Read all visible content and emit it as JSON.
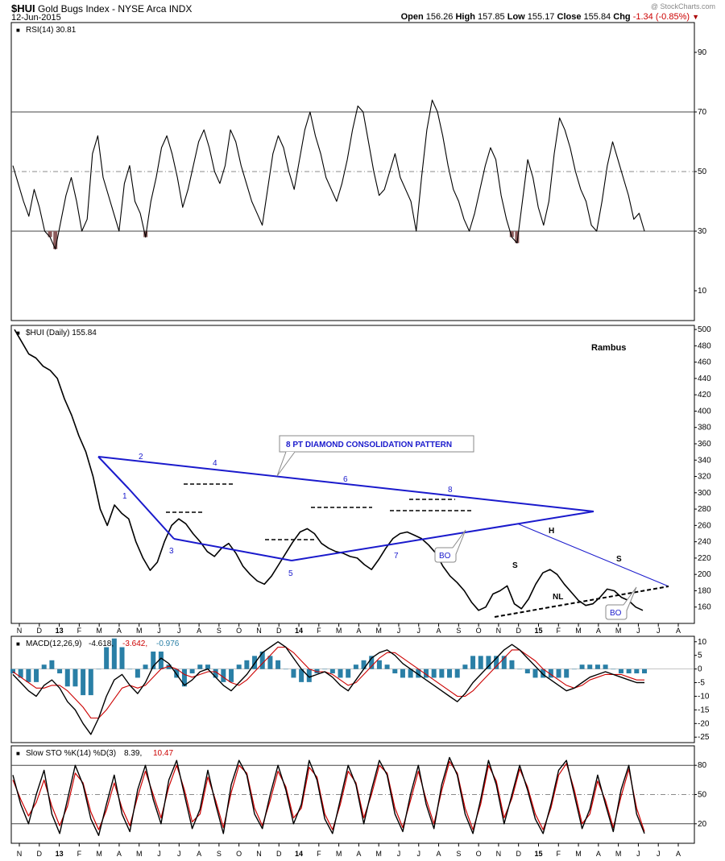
{
  "header": {
    "symbol": "$HUI",
    "name": "Gold Bugs Index - NYSE Arca INDX",
    "date": "12-Jun-2015",
    "watermark": "@ StockCharts.com",
    "open_label": "Open",
    "open": "156.26",
    "high_label": "High",
    "high": "157.85",
    "low_label": "Low",
    "low": "155.17",
    "close_label": "Close",
    "close": "155.84",
    "chg_label": "Chg",
    "chg": "-1.34 (-0.85%)"
  },
  "colors": {
    "pattern_blue": "#1a1acc",
    "macd_red": "#cc0000",
    "histogram": "#2a7fa6",
    "rsi_fill": "#8b5a5a"
  },
  "time_axis": [
    "N",
    "D",
    "13",
    "F",
    "M",
    "A",
    "M",
    "J",
    "J",
    "A",
    "S",
    "O",
    "N",
    "D",
    "14",
    "F",
    "M",
    "A",
    "M",
    "J",
    "J",
    "A",
    "S",
    "O",
    "N",
    "D",
    "15",
    "F",
    "M",
    "A",
    "M",
    "J",
    "J",
    "A"
  ],
  "annotations": {
    "rambus": "Rambus",
    "pattern_box": "8 PT DIAMOND CONSOLIDATION PATTERN",
    "points": [
      "1",
      "2",
      "3",
      "4",
      "5",
      "6",
      "7",
      "8"
    ],
    "h": "H",
    "s": "S",
    "nl": "NL",
    "bo": "BO"
  },
  "chart_data": [
    {
      "type": "line",
      "title": "RSI(14) 30.81",
      "ylim": [
        0,
        100
      ],
      "yticks": [
        10,
        30,
        50,
        70,
        90
      ],
      "levels": [
        30,
        50,
        70
      ],
      "series": [
        {
          "name": "RSI(14)",
          "values": [
            52,
            46,
            40,
            35,
            44,
            38,
            30,
            28,
            24,
            33,
            42,
            48,
            40,
            30,
            34,
            56,
            62,
            48,
            42,
            36,
            30,
            46,
            52,
            40,
            36,
            28,
            40,
            48,
            58,
            62,
            56,
            48,
            38,
            44,
            52,
            60,
            64,
            58,
            50,
            46,
            52,
            64,
            60,
            52,
            46,
            40,
            36,
            32,
            44,
            56,
            62,
            58,
            50,
            44,
            54,
            64,
            70,
            62,
            56,
            48,
            44,
            40,
            46,
            54,
            64,
            72,
            70,
            60,
            50,
            42,
            44,
            50,
            56,
            48,
            44,
            40,
            30,
            48,
            64,
            74,
            70,
            62,
            52,
            44,
            40,
            34,
            30,
            36,
            44,
            52,
            58,
            54,
            42,
            34,
            28,
            26,
            40,
            54,
            48,
            38,
            32,
            40,
            56,
            68,
            64,
            58,
            50,
            44,
            40,
            32,
            30,
            40,
            52,
            60,
            54,
            48,
            42,
            34,
            36,
            30
          ]
        }
      ],
      "value_label": "30.81"
    },
    {
      "type": "line",
      "title": "$HUI (Daily) 155.84",
      "ylim": [
        140,
        505
      ],
      "yticks": [
        160,
        180,
        200,
        220,
        240,
        260,
        280,
        300,
        320,
        340,
        360,
        380,
        400,
        420,
        440,
        460,
        480,
        500
      ],
      "series": [
        {
          "name": "$HUI (Daily)",
          "values": [
            500,
            485,
            470,
            465,
            455,
            450,
            440,
            415,
            395,
            370,
            350,
            320,
            280,
            260,
            285,
            275,
            268,
            240,
            220,
            205,
            215,
            240,
            260,
            268,
            262,
            250,
            240,
            228,
            222,
            232,
            238,
            226,
            210,
            200,
            192,
            188,
            198,
            212,
            226,
            240,
            252,
            256,
            250,
            238,
            232,
            228,
            226,
            222,
            220,
            212,
            206,
            218,
            232,
            244,
            250,
            252,
            248,
            244,
            236,
            226,
            210,
            198,
            190,
            180,
            166,
            156,
            160,
            176,
            180,
            186,
            164,
            158,
            170,
            188,
            202,
            206,
            200,
            188,
            178,
            168,
            162,
            164,
            172,
            182,
            180,
            172,
            168,
            160,
            156
          ]
        }
      ],
      "value_label": "155.84"
    },
    {
      "type": "line",
      "title": "MACD(12,26,9) -4.618, -3.642, -0.976",
      "ylim": [
        -27,
        12
      ],
      "yticks": [
        -25,
        -20,
        -15,
        -10,
        -5,
        0,
        5,
        10
      ],
      "series": [
        {
          "name": "MACD",
          "values": [
            -2,
            -5,
            -8,
            -10,
            -6,
            -4,
            -7,
            -12,
            -15,
            -20,
            -24,
            -18,
            -10,
            -4,
            -2,
            -6,
            -9,
            -5,
            1,
            4,
            2,
            -2,
            -6,
            -4,
            -1,
            0,
            -3,
            -6,
            -8,
            -5,
            -2,
            2,
            6,
            8,
            10,
            8,
            4,
            0,
            -3,
            -2,
            -1,
            -3,
            -6,
            -8,
            -4,
            0,
            4,
            6,
            7,
            5,
            2,
            0,
            -2,
            -4,
            -6,
            -8,
            -10,
            -12,
            -9,
            -5,
            -2,
            1,
            4,
            7,
            9,
            7,
            4,
            1,
            -2,
            -4,
            -6,
            -8,
            -7,
            -5,
            -3,
            -2,
            -1,
            -2,
            -3,
            -4,
            -5,
            -5
          ]
        },
        {
          "name": "Signal",
          "values": [
            -1,
            -3,
            -5,
            -7,
            -7,
            -6,
            -6,
            -8,
            -11,
            -14,
            -18,
            -18,
            -15,
            -11,
            -7,
            -6,
            -7,
            -6,
            -3,
            0,
            1,
            0,
            -2,
            -3,
            -2,
            -1,
            -1,
            -3,
            -5,
            -6,
            -4,
            -1,
            2,
            5,
            8,
            8,
            6,
            3,
            0,
            -1,
            -1,
            -2,
            -4,
            -6,
            -5,
            -2,
            1,
            4,
            6,
            6,
            4,
            2,
            0,
            -2,
            -4,
            -6,
            -8,
            -10,
            -10,
            -8,
            -5,
            -2,
            1,
            4,
            7,
            7,
            5,
            3,
            0,
            -2,
            -4,
            -6,
            -7,
            -6,
            -4,
            -3,
            -2,
            -2,
            -2,
            -3,
            -4,
            -4
          ]
        }
      ],
      "value_labels": [
        "-4.618",
        "-3.642",
        "-0.976"
      ]
    },
    {
      "type": "line",
      "title": "Slow STO %K(14) %D(3) 8.39, 10.47",
      "ylim": [
        0,
        100
      ],
      "yticks": [
        20,
        50,
        80
      ],
      "levels": [
        20,
        50,
        80
      ],
      "series": [
        {
          "name": "%K(14)",
          "values": [
            70,
            40,
            20,
            50,
            75,
            30,
            10,
            45,
            80,
            60,
            25,
            8,
            40,
            70,
            30,
            12,
            55,
            80,
            45,
            20,
            65,
            85,
            50,
            15,
            35,
            75,
            40,
            10,
            60,
            85,
            70,
            30,
            15,
            50,
            80,
            55,
            20,
            40,
            85,
            65,
            25,
            10,
            45,
            80,
            60,
            20,
            55,
            85,
            70,
            30,
            12,
            50,
            80,
            40,
            15,
            60,
            88,
            70,
            30,
            10,
            45,
            85,
            60,
            20,
            50,
            80,
            55,
            25,
            10,
            40,
            75,
            85,
            50,
            15,
            35,
            70,
            40,
            12,
            55,
            80,
            30,
            10
          ]
        },
        {
          "name": "%D(3)",
          "values": [
            65,
            45,
            28,
            42,
            65,
            38,
            18,
            38,
            72,
            62,
            32,
            14,
            34,
            62,
            36,
            18,
            48,
            74,
            50,
            26,
            58,
            80,
            55,
            22,
            30,
            68,
            44,
            16,
            52,
            80,
            72,
            36,
            18,
            44,
            74,
            58,
            26,
            36,
            78,
            68,
            30,
            14,
            40,
            74,
            62,
            26,
            50,
            80,
            72,
            36,
            16,
            44,
            74,
            45,
            20,
            54,
            84,
            72,
            36,
            14,
            40,
            80,
            64,
            26,
            46,
            76,
            58,
            30,
            14,
            36,
            70,
            82,
            55,
            20,
            30,
            64,
            44,
            16,
            48,
            76,
            36,
            12
          ]
        }
      ],
      "value_labels": [
        "8.39",
        "10.47"
      ]
    }
  ]
}
